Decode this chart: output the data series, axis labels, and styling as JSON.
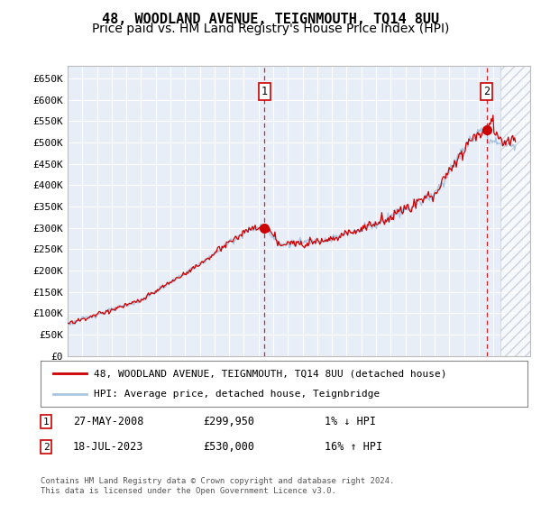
{
  "title": "48, WOODLAND AVENUE, TEIGNMOUTH, TQ14 8UU",
  "subtitle": "Price paid vs. HM Land Registry's House Price Index (HPI)",
  "ylabel_ticks": [
    "£0",
    "£50K",
    "£100K",
    "£150K",
    "£200K",
    "£250K",
    "£300K",
    "£350K",
    "£400K",
    "£450K",
    "£500K",
    "£550K",
    "£600K",
    "£650K"
  ],
  "ytick_values": [
    0,
    50000,
    100000,
    150000,
    200000,
    250000,
    300000,
    350000,
    400000,
    450000,
    500000,
    550000,
    600000,
    650000
  ],
  "ylim": [
    0,
    680000
  ],
  "xlim_start": 1995.0,
  "xlim_end": 2026.5,
  "hpi_color": "#aac4e0",
  "price_color": "#cc0000",
  "dot_color": "#cc0000",
  "background_color": "#e8eef8",
  "transaction1_x": 2008.4,
  "transaction1_price": 299950,
  "transaction2_x": 2023.55,
  "transaction2_price": 530000,
  "legend_line1": "48, WOODLAND AVENUE, TEIGNMOUTH, TQ14 8UU (detached house)",
  "legend_line2": "HPI: Average price, detached house, Teignbridge",
  "footer": "Contains HM Land Registry data © Crown copyright and database right 2024.\nThis data is licensed under the Open Government Licence v3.0.",
  "title_fontsize": 11,
  "subtitle_fontsize": 10,
  "hatch_start": 2024.5
}
